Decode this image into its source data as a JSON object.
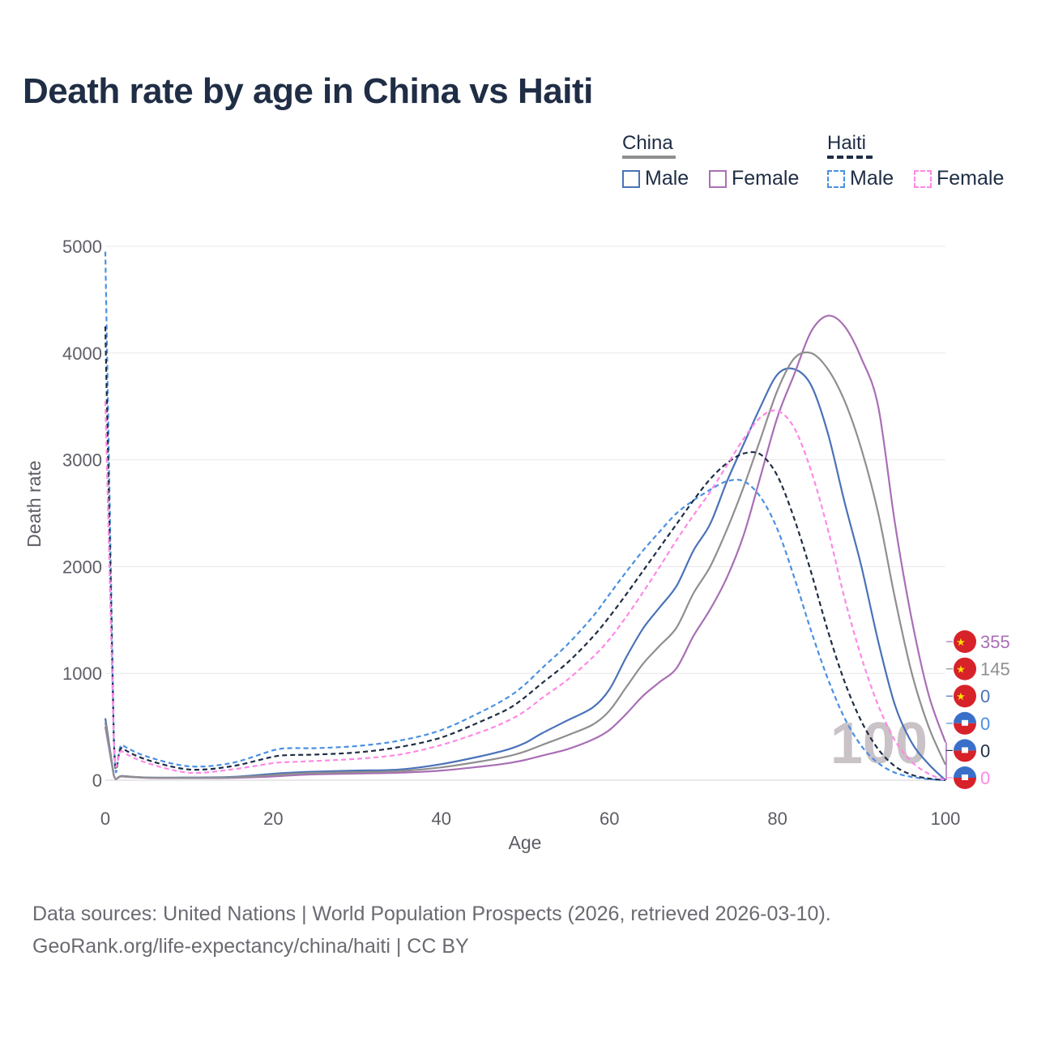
{
  "chart_data": {
    "type": "line",
    "title": "Death rate by age in China vs Haiti",
    "xlabel": "Age",
    "ylabel": "Death rate",
    "xlim": [
      0,
      100
    ],
    "ylim": [
      0,
      5000
    ],
    "x_ticks": [
      "0",
      "20",
      "40",
      "60",
      "80",
      "100"
    ],
    "y_ticks": [
      "0",
      "1000",
      "2000",
      "3000",
      "4000",
      "5000"
    ],
    "grid": true,
    "year_watermark": "100",
    "legend": {
      "groups": [
        {
          "name": "China",
          "items": [
            "Male",
            "Female"
          ]
        },
        {
          "name": "Haiti",
          "items": [
            "Male",
            "Female"
          ]
        }
      ]
    },
    "x": [
      0,
      1,
      2,
      5,
      10,
      15,
      20,
      22,
      25,
      30,
      35,
      40,
      45,
      48,
      50,
      52,
      55,
      58,
      60,
      62,
      64,
      66,
      68,
      70,
      72,
      74,
      76,
      78,
      80,
      82,
      84,
      86,
      88,
      90,
      92,
      94,
      96,
      98,
      100
    ],
    "series": [
      {
        "name": "China Male",
        "country": "China",
        "sex": "Male",
        "color": "#4a72b8",
        "dash": "solid",
        "end_label": "0",
        "values": [
          580,
          50,
          40,
          25,
          25,
          30,
          60,
          70,
          80,
          90,
          100,
          150,
          230,
          290,
          350,
          440,
          560,
          680,
          850,
          1150,
          1420,
          1620,
          1820,
          2150,
          2400,
          2800,
          3150,
          3500,
          3800,
          3850,
          3700,
          3250,
          2600,
          2000,
          1300,
          700,
          350,
          150,
          0
        ]
      },
      {
        "name": "China Female",
        "country": "China",
        "sex": "Female",
        "color": "#a96fb5",
        "dash": "solid",
        "end_label": "355",
        "values": [
          500,
          45,
          35,
          22,
          20,
          22,
          35,
          45,
          55,
          62,
          70,
          90,
          130,
          160,
          190,
          230,
          290,
          380,
          470,
          620,
          790,
          920,
          1050,
          1350,
          1600,
          1900,
          2300,
          2850,
          3400,
          3800,
          4200,
          4350,
          4250,
          3950,
          3500,
          2400,
          1500,
          800,
          355
        ]
      },
      {
        "name": "China Both",
        "country": "China",
        "sex": "Both",
        "color": "#8f8f8f",
        "dash": "solid",
        "end_label": "145",
        "values": [
          540,
          48,
          38,
          24,
          22,
          26,
          48,
          58,
          68,
          76,
          85,
          120,
          180,
          225,
          270,
          330,
          420,
          520,
          650,
          870,
          1090,
          1260,
          1430,
          1750,
          2000,
          2350,
          2750,
          3200,
          3650,
          3950,
          4000,
          3850,
          3550,
          3100,
          2500,
          1700,
          1000,
          500,
          145
        ]
      },
      {
        "name": "Haiti Male",
        "country": "Haiti",
        "sex": "Male",
        "color": "#4a90e2",
        "dash": "dashed",
        "end_label": "0",
        "values": [
          4950,
          420,
          330,
          220,
          130,
          160,
          280,
          300,
          300,
          320,
          370,
          470,
          650,
          780,
          900,
          1050,
          1270,
          1530,
          1740,
          1950,
          2150,
          2330,
          2500,
          2620,
          2720,
          2800,
          2800,
          2650,
          2350,
          1900,
          1400,
          950,
          580,
          320,
          160,
          70,
          30,
          10,
          0
        ]
      },
      {
        "name": "Haiti Both",
        "country": "Haiti",
        "sex": "Both",
        "color": "#1f2d45",
        "dash": "dashed",
        "end_label": "0",
        "values": [
          4250,
          400,
          300,
          190,
          100,
          130,
          220,
          235,
          240,
          260,
          310,
          400,
          560,
          670,
          780,
          910,
          1100,
          1340,
          1530,
          1740,
          1960,
          2180,
          2400,
          2620,
          2820,
          2970,
          3060,
          3050,
          2850,
          2450,
          1950,
          1400,
          920,
          550,
          290,
          130,
          50,
          15,
          0
        ]
      },
      {
        "name": "Haiti Female",
        "country": "Haiti",
        "sex": "Female",
        "color": "#ff88e6",
        "dash": "dashed",
        "end_label": "0",
        "values": [
          3550,
          380,
          270,
          160,
          70,
          100,
          160,
          170,
          180,
          200,
          240,
          330,
          460,
          560,
          650,
          770,
          940,
          1150,
          1320,
          1530,
          1760,
          2000,
          2250,
          2480,
          2700,
          2950,
          3200,
          3400,
          3460,
          3300,
          2900,
          2350,
          1700,
          1150,
          700,
          370,
          170,
          60,
          0
        ]
      }
    ]
  },
  "source": {
    "line1": "Data sources: United Nations | World Population Prospects (2026, retrieved 2026-03-10).",
    "line2": "GeoRank.org/life-expectancy/china/haiti | CC BY"
  }
}
